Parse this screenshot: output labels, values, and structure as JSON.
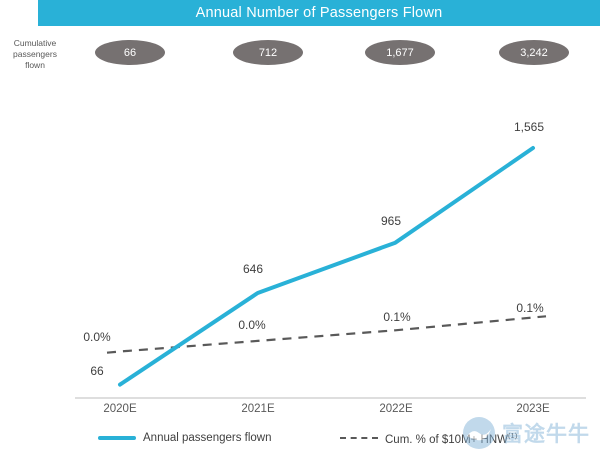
{
  "title": "Annual Number of Passengers Flown",
  "side_label": "Cumulative passengers flown",
  "cumulative": {
    "values": [
      "66",
      "712",
      "1,677",
      "3,242"
    ]
  },
  "chart_data": {
    "type": "line",
    "categories": [
      "2020E",
      "2021E",
      "2022E",
      "2023E"
    ],
    "series": [
      {
        "name": "Annual passengers flown",
        "values": [
          66,
          646,
          965,
          1565
        ],
        "labels": [
          "66",
          "646",
          "965",
          "1,565"
        ],
        "color": "#29b1d7",
        "style": "solid",
        "axis": "count"
      },
      {
        "name": "Cum. % of $10M+ HNW(1)",
        "values": [
          0.0,
          0.0,
          0.1,
          0.1
        ],
        "labels": [
          "0.0%",
          "0.0%",
          "0.1%",
          "0.1%"
        ],
        "plot_values": [
          0.02,
          0.045,
          0.07,
          0.1
        ],
        "color": "#595959",
        "style": "dashed",
        "axis": "percent"
      }
    ],
    "ylim_count": [
      0,
      1800
    ],
    "ylim_percent": [
      0,
      0.2
    ],
    "grid": false,
    "legend_position": "bottom"
  },
  "legend": {
    "items": [
      {
        "label": "Annual passengers flown",
        "sup": ""
      },
      {
        "label": "Cum. % of $10M+ HNW",
        "sup": "(1)"
      }
    ]
  },
  "watermark": {
    "text": "富途牛牛"
  },
  "colors": {
    "accent": "#29b1d7",
    "badge_gray": "#767171",
    "dashed_gray": "#595959",
    "title_bg": "#29b1d7"
  }
}
